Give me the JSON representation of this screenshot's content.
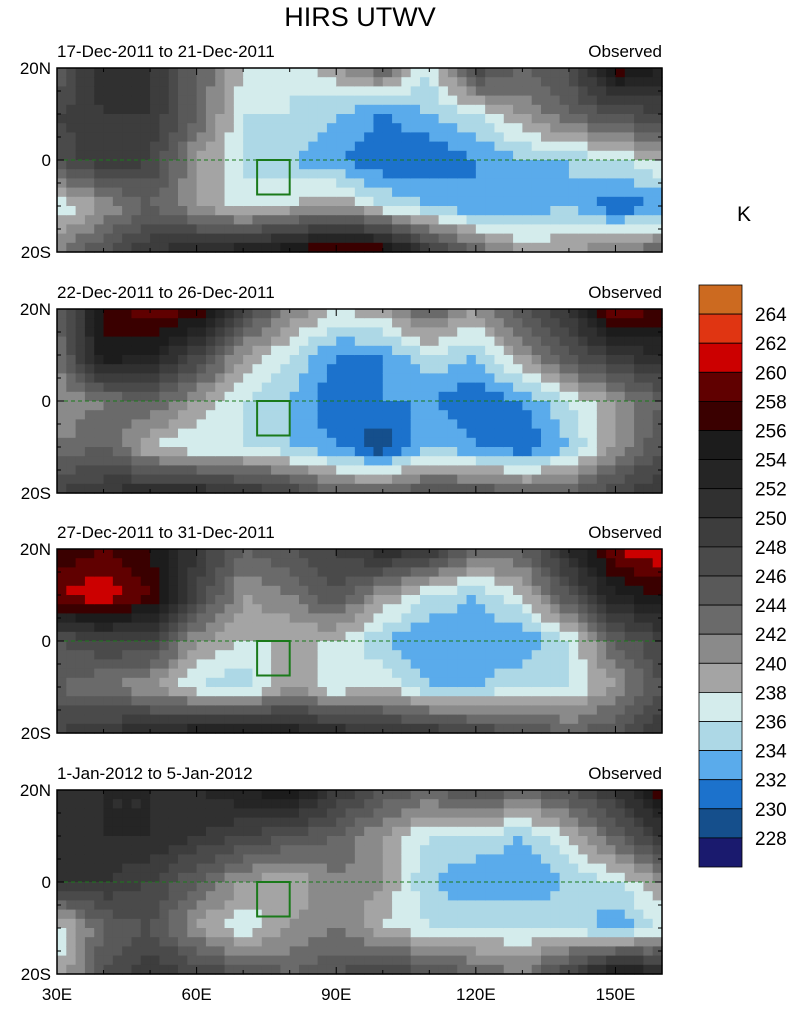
{
  "chart_data": {
    "type": "heatmap",
    "title": "HIRS UTWV",
    "units": "K",
    "lon": [
      30,
      40,
      50,
      60,
      70,
      80,
      90,
      100,
      110,
      120,
      130,
      140,
      150,
      160
    ],
    "lat": [
      20,
      10,
      0,
      -10,
      -20
    ],
    "x_ticks": [
      {
        "v": 30,
        "label": "30E"
      },
      {
        "v": 60,
        "label": "60E"
      },
      {
        "v": 90,
        "label": "90E"
      },
      {
        "v": 120,
        "label": "120E"
      },
      {
        "v": 150,
        "label": "150E"
      }
    ],
    "y_ticks": [
      {
        "v": 20,
        "label": "20N"
      },
      {
        "v": 0,
        "label": "0"
      },
      {
        "v": -20,
        "label": "20S"
      }
    ],
    "xlim": [
      30,
      160
    ],
    "ylim": [
      -20,
      20
    ],
    "levels": [
      228,
      230,
      232,
      234,
      236,
      238,
      240,
      242,
      244,
      246,
      248,
      250,
      252,
      254,
      256,
      258,
      260,
      262,
      264
    ],
    "colors": [
      "#1a1a6e",
      "#154f8c",
      "#1c72cc",
      "#5aabeb",
      "#add8e6",
      "#d4ecec",
      "#a4a4a4",
      "#8a8a8a",
      "#6a6a6a",
      "#595959",
      "#4a4a4a",
      "#3d3d3d",
      "#303030",
      "#252525",
      "#1c1c1c",
      "#3a0000",
      "#600000",
      "#cc0000",
      "#e03512",
      "#cc6a20"
    ],
    "highlight_box": {
      "lon": [
        73,
        80
      ],
      "lat": [
        -7.5,
        0
      ]
    },
    "panels": [
      {
        "title": "17-Dec-2011 to 21-Dec-2011",
        "label": "Observed",
        "values": [
          [
            244,
            252,
            250,
            244,
            238,
            236,
            240,
            244,
            236,
            248,
            244,
            246,
            258,
            254
          ],
          [
            248,
            250,
            250,
            244,
            236,
            236,
            234,
            232,
            234,
            236,
            240,
            244,
            246,
            248
          ],
          [
            246,
            250,
            248,
            240,
            236,
            234,
            232,
            230,
            230,
            232,
            234,
            234,
            236,
            238
          ],
          [
            236,
            240,
            244,
            240,
            236,
            238,
            240,
            236,
            234,
            232,
            232,
            234,
            230,
            232
          ],
          [
            242,
            246,
            250,
            252,
            254,
            256,
            260,
            258,
            250,
            244,
            240,
            240,
            242,
            244
          ]
        ]
      },
      {
        "title": "22-Dec-2011 to 26-Dec-2011",
        "label": "Observed",
        "values": [
          [
            244,
            256,
            260,
            258,
            248,
            242,
            238,
            240,
            244,
            240,
            246,
            250,
            260,
            258
          ],
          [
            242,
            256,
            254,
            248,
            240,
            236,
            232,
            232,
            236,
            234,
            240,
            246,
            250,
            252
          ],
          [
            240,
            242,
            244,
            240,
            236,
            234,
            230,
            232,
            232,
            230,
            232,
            236,
            240,
            244
          ],
          [
            242,
            244,
            238,
            236,
            236,
            234,
            232,
            228,
            234,
            232,
            230,
            234,
            240,
            246
          ],
          [
            248,
            250,
            252,
            252,
            250,
            248,
            244,
            244,
            246,
            246,
            244,
            244,
            248,
            250
          ]
        ]
      },
      {
        "title": "27-Dec-2011 to 31-Dec-2011",
        "label": "Observed",
        "values": [
          [
            256,
            258,
            256,
            250,
            244,
            246,
            248,
            252,
            250,
            244,
            244,
            252,
            260,
            262
          ],
          [
            260,
            262,
            258,
            248,
            240,
            242,
            246,
            240,
            236,
            234,
            238,
            246,
            254,
            256
          ],
          [
            246,
            248,
            248,
            240,
            238,
            238,
            238,
            234,
            232,
            232,
            232,
            236,
            244,
            248
          ],
          [
            244,
            242,
            240,
            236,
            234,
            240,
            236,
            238,
            234,
            234,
            236,
            236,
            240,
            246
          ],
          [
            248,
            250,
            252,
            254,
            254,
            254,
            252,
            250,
            250,
            248,
            246,
            244,
            246,
            250
          ]
        ]
      },
      {
        "title": "1-Jan-2012 to 5-Jan-2012",
        "label": "Observed",
        "values": [
          [
            250,
            252,
            252,
            252,
            254,
            256,
            250,
            246,
            244,
            246,
            244,
            246,
            250,
            258
          ],
          [
            252,
            252,
            252,
            250,
            248,
            246,
            244,
            240,
            236,
            236,
            234,
            238,
            244,
            250
          ],
          [
            250,
            250,
            248,
            244,
            240,
            238,
            242,
            240,
            234,
            232,
            232,
            234,
            236,
            240
          ],
          [
            236,
            244,
            246,
            240,
            236,
            240,
            242,
            238,
            236,
            236,
            236,
            236,
            232,
            236
          ],
          [
            238,
            246,
            250,
            248,
            246,
            244,
            246,
            248,
            246,
            244,
            242,
            248,
            256,
            252
          ]
        ]
      }
    ]
  }
}
